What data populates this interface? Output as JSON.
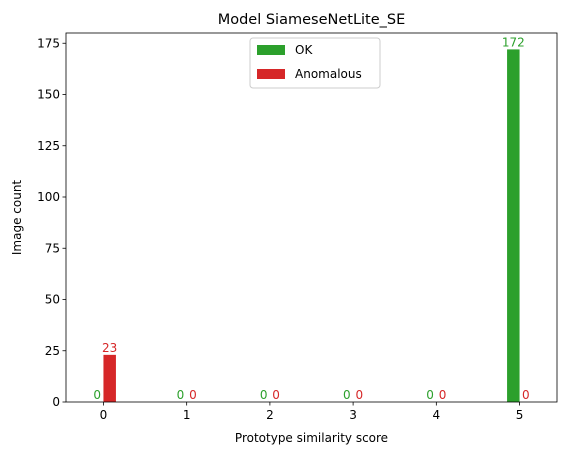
{
  "chart_data": {
    "type": "bar",
    "title": "Model SiameseNetLite_SE",
    "xlabel": "Prototype similarity score",
    "ylabel": "Image count",
    "categories": [
      "0",
      "1",
      "2",
      "3",
      "4",
      "5"
    ],
    "series": [
      {
        "name": "OK",
        "values": [
          0,
          0,
          0,
          0,
          0,
          172
        ],
        "color": "#2ca02c"
      },
      {
        "name": "Anomalous",
        "values": [
          23,
          0,
          0,
          0,
          0,
          0
        ],
        "color": "#d62728"
      }
    ],
    "ylim": [
      0,
      180
    ],
    "yticks": [
      0,
      25,
      50,
      75,
      100,
      125,
      150,
      175
    ],
    "xlim": [
      -0.45,
      5.45
    ],
    "grid": false,
    "legend_placement": "top-center"
  }
}
